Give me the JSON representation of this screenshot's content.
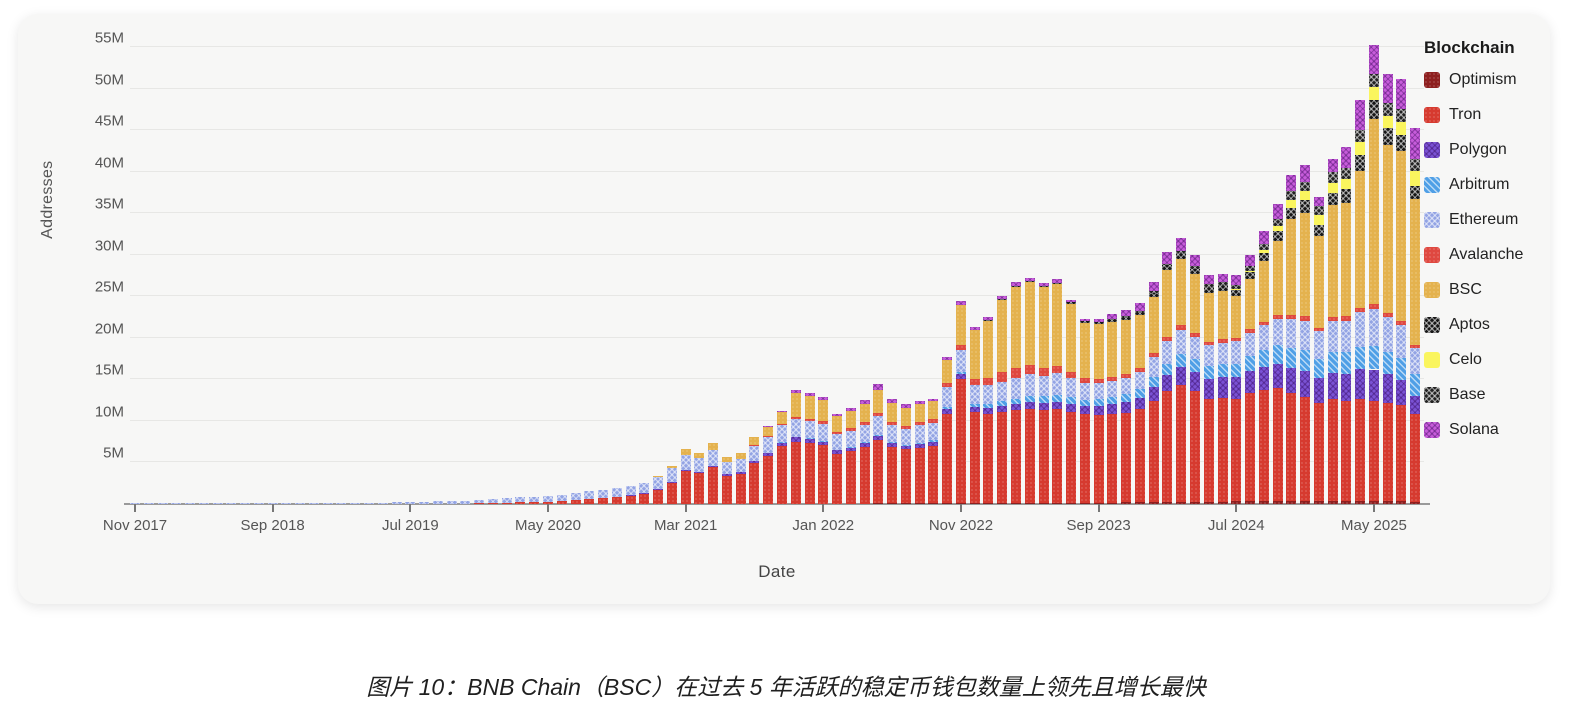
{
  "page": {
    "caption": "图片 10：BNB Chain（BSC）在过去 5 年活跃的稳定币钱包数量上领先且增长最快"
  },
  "chart_data": {
    "type": "bar",
    "stacked": true,
    "xlabel": "Date",
    "ylabel": "Addresses",
    "y_unit": "M",
    "ylim": [
      0,
      56
    ],
    "grid": true,
    "legend_position": "right",
    "legend_title": "Blockchain",
    "y_tick_labels": [
      "5M",
      "10M",
      "15M",
      "20M",
      "25M",
      "30M",
      "35M",
      "40M",
      "45M",
      "50M",
      "55M"
    ],
    "x_start_month": "Nov 2017",
    "x_end_month": "Aug 2025",
    "x_frequency": "monthly",
    "x_tick_every": 10,
    "x_tick_labels": [
      "Nov 2017",
      "Sep 2018",
      "Jul 2019",
      "May 2020",
      "Mar 2021",
      "Jan 2022",
      "Nov 2022",
      "Sep 2023",
      "Jul 2024",
      "May 2025"
    ],
    "series": [
      {
        "name": "Optimism",
        "color": "#8e1f1f",
        "pattern": "dots",
        "values": [
          0,
          0,
          0,
          0,
          0,
          0,
          0,
          0,
          0,
          0,
          0,
          0,
          0,
          0,
          0,
          0,
          0,
          0,
          0,
          0,
          0,
          0,
          0,
          0,
          0,
          0,
          0,
          0,
          0,
          0,
          0,
          0,
          0,
          0,
          0,
          0,
          0,
          0,
          0,
          0,
          0,
          0,
          0,
          0,
          0,
          0,
          0,
          0,
          0,
          0,
          0.05,
          0.05,
          0.06,
          0.06,
          0.08,
          0.08,
          0.08,
          0.09,
          0.1,
          0.1,
          0.1,
          0.1,
          0.1,
          0.1,
          0.1,
          0.1,
          0.12,
          0.12,
          0.12,
          0.12,
          0.15,
          0.15,
          0.2,
          0.2,
          0.25,
          0.3,
          0.3,
          0.3,
          0.3,
          0.3,
          0.35,
          0.35,
          0.35,
          0.4,
          0.4,
          0.4,
          0.4,
          0.4,
          0.4,
          0.4,
          0.4,
          0.4,
          0.35,
          0.3
        ]
      },
      {
        "name": "Tron",
        "color": "#d63a2f",
        "pattern": "dots",
        "values": [
          0,
          0,
          0,
          0,
          0,
          0,
          0,
          0,
          0,
          0,
          0,
          0,
          0,
          0,
          0,
          0,
          0,
          0,
          0,
          0,
          0,
          0.02,
          0.03,
          0.04,
          0.05,
          0.08,
          0.1,
          0.15,
          0.2,
          0.25,
          0.3,
          0.4,
          0.48,
          0.58,
          0.7,
          0.85,
          1.0,
          1.25,
          1.7,
          2.5,
          4.0,
          3.7,
          4.4,
          3.4,
          3.6,
          4.9,
          5.8,
          7.0,
          7.5,
          7.3,
          7.0,
          6.0,
          6.3,
          6.8,
          7.6,
          6.8,
          6.5,
          6.7,
          6.9,
          10.8,
          15.0,
          11.0,
          10.8,
          11.0,
          11.2,
          11.4,
          11.2,
          11.3,
          11.0,
          10.7,
          10.6,
          10.7,
          10.8,
          11.2,
          12.2,
          13.3,
          14.0,
          13.3,
          12.4,
          12.5,
          12.3,
          13.0,
          13.4,
          13.6,
          13.0,
          12.5,
          11.8,
          12.2,
          12.0,
          12.2,
          12.0,
          11.8,
          11.6,
          10.5
        ]
      },
      {
        "name": "Polygon",
        "color": "#7a52d4",
        "pattern": "cross-dark",
        "values": [
          0,
          0,
          0,
          0,
          0,
          0,
          0,
          0,
          0,
          0,
          0,
          0,
          0,
          0,
          0,
          0,
          0,
          0,
          0,
          0,
          0,
          0,
          0,
          0,
          0,
          0,
          0,
          0,
          0,
          0,
          0,
          0,
          0.02,
          0.03,
          0.04,
          0.05,
          0.06,
          0.08,
          0.1,
          0.12,
          0.15,
          0.18,
          0.22,
          0.2,
          0.22,
          0.28,
          0.32,
          0.4,
          0.55,
          0.5,
          0.45,
          0.4,
          0.42,
          0.45,
          0.5,
          0.45,
          0.42,
          0.45,
          0.48,
          0.52,
          0.55,
          0.6,
          0.65,
          0.7,
          0.75,
          0.8,
          0.85,
          0.9,
          0.95,
          1.0,
          1.1,
          1.2,
          1.3,
          1.4,
          1.6,
          1.9,
          2.2,
          2.3,
          2.4,
          2.5,
          2.6,
          2.7,
          2.8,
          2.9,
          3.0,
          3.1,
          3.0,
          3.2,
          3.3,
          3.6,
          3.8,
          3.4,
          3.0,
          2.2
        ]
      },
      {
        "name": "Arbitrum",
        "color": "#4f9fe6",
        "pattern": "diag",
        "values": [
          0,
          0,
          0,
          0,
          0,
          0,
          0,
          0,
          0,
          0,
          0,
          0,
          0,
          0,
          0,
          0,
          0,
          0,
          0,
          0,
          0,
          0,
          0,
          0,
          0,
          0,
          0,
          0,
          0,
          0,
          0,
          0,
          0,
          0,
          0,
          0,
          0,
          0,
          0,
          0,
          0,
          0,
          0,
          0,
          0.02,
          0.03,
          0.05,
          0.06,
          0.08,
          0.1,
          0.1,
          0.1,
          0.12,
          0.14,
          0.16,
          0.15,
          0.14,
          0.16,
          0.18,
          0.25,
          0.3,
          0.35,
          0.45,
          0.55,
          0.65,
          0.75,
          0.8,
          0.85,
          0.8,
          0.75,
          0.78,
          0.82,
          0.9,
          1.0,
          1.2,
          1.4,
          1.6,
          1.55,
          1.5,
          1.55,
          1.65,
          1.75,
          1.95,
          2.2,
          2.4,
          2.5,
          2.3,
          2.5,
          2.6,
          2.7,
          2.8,
          2.7,
          2.6,
          2.6
        ]
      },
      {
        "name": "Ethereum",
        "color": "#93a4e4",
        "pattern": "cross-white",
        "values": [
          0.02,
          0.02,
          0.03,
          0.03,
          0.04,
          0.04,
          0.05,
          0.05,
          0.06,
          0.06,
          0.07,
          0.08,
          0.09,
          0.1,
          0.11,
          0.12,
          0.14,
          0.16,
          0.18,
          0.2,
          0.25,
          0.28,
          0.3,
          0.33,
          0.36,
          0.45,
          0.5,
          0.55,
          0.6,
          0.6,
          0.62,
          0.72,
          0.85,
          0.95,
          1.0,
          1.05,
          1.1,
          1.25,
          1.5,
          1.7,
          1.8,
          1.7,
          1.85,
          1.5,
          1.55,
          1.8,
          1.9,
          2.0,
          2.1,
          2.05,
          2.0,
          1.85,
          1.95,
          2.05,
          2.2,
          2.0,
          1.9,
          2.1,
          2.1,
          2.4,
          2.6,
          2.3,
          2.3,
          2.4,
          2.5,
          2.6,
          2.5,
          2.55,
          2.3,
          2.0,
          1.9,
          1.95,
          2.0,
          2.1,
          2.4,
          2.7,
          2.9,
          2.7,
          2.5,
          2.55,
          2.7,
          2.8,
          3.0,
          3.2,
          3.5,
          3.6,
          3.3,
          3.7,
          3.8,
          4.2,
          4.5,
          4.2,
          4.0,
          3.2
        ]
      },
      {
        "name": "Avalanche",
        "color": "#df4840",
        "pattern": "dots",
        "values": [
          0,
          0,
          0,
          0,
          0,
          0,
          0,
          0,
          0,
          0,
          0,
          0,
          0,
          0,
          0,
          0,
          0,
          0,
          0,
          0,
          0,
          0,
          0,
          0,
          0,
          0,
          0,
          0,
          0,
          0,
          0,
          0,
          0,
          0,
          0,
          0,
          0,
          0,
          0,
          0,
          0,
          0,
          0,
          0,
          0.03,
          0.06,
          0.1,
          0.15,
          0.25,
          0.3,
          0.35,
          0.3,
          0.32,
          0.36,
          0.45,
          0.4,
          0.35,
          0.4,
          0.42,
          0.55,
          0.6,
          0.65,
          0.9,
          1.1,
          1.2,
          1.1,
          0.95,
          0.85,
          0.7,
          0.55,
          0.5,
          0.48,
          0.45,
          0.45,
          0.5,
          0.55,
          0.6,
          0.5,
          0.45,
          0.42,
          0.4,
          0.42,
          0.45,
          0.48,
          0.5,
          0.5,
          0.45,
          0.5,
          0.5,
          0.55,
          0.6,
          0.55,
          0.5,
          0.4
        ]
      },
      {
        "name": "BSC",
        "color": "#e4b24e",
        "pattern": "dots",
        "values": [
          0,
          0,
          0,
          0,
          0,
          0,
          0,
          0,
          0,
          0,
          0,
          0,
          0,
          0,
          0,
          0,
          0,
          0,
          0,
          0,
          0,
          0,
          0,
          0,
          0,
          0,
          0,
          0,
          0,
          0,
          0,
          0,
          0,
          0,
          0,
          0,
          0,
          0,
          0.05,
          0.2,
          0.7,
          0.6,
          0.85,
          0.6,
          0.7,
          0.95,
          1.1,
          1.45,
          2.85,
          2.7,
          2.55,
          1.85,
          2.0,
          2.2,
          2.8,
          2.3,
          2.2,
          2.2,
          2.2,
          2.7,
          4.8,
          5.9,
          6.9,
          8.7,
          9.7,
          10.0,
          9.7,
          9.9,
          8.2,
          6.7,
          6.6,
          6.6,
          6.5,
          6.4,
          6.8,
          8.0,
          7.9,
          7.0,
          5.9,
          5.8,
          5.0,
          6.1,
          7.3,
          8.9,
          11.5,
          12.5,
          11.0,
          13.5,
          13.7,
          16.5,
          22.3,
          20.2,
          20.5,
          17.5
        ]
      },
      {
        "name": "Aptos",
        "color": "#171717",
        "pattern": "cross-white",
        "values": [
          0,
          0,
          0,
          0,
          0,
          0,
          0,
          0,
          0,
          0,
          0,
          0,
          0,
          0,
          0,
          0,
          0,
          0,
          0,
          0,
          0,
          0,
          0,
          0,
          0,
          0,
          0,
          0,
          0,
          0,
          0,
          0,
          0,
          0,
          0,
          0,
          0,
          0,
          0,
          0,
          0,
          0,
          0,
          0,
          0,
          0,
          0,
          0,
          0,
          0,
          0,
          0,
          0,
          0,
          0,
          0,
          0,
          0,
          0,
          0,
          0,
          0,
          0.1,
          0.12,
          0.15,
          0.15,
          0.15,
          0.18,
          0.2,
          0.22,
          0.25,
          0.3,
          0.35,
          0.4,
          0.5,
          0.6,
          0.7,
          0.7,
          0.65,
          0.7,
          0.8,
          0.85,
          1.0,
          1.2,
          1.4,
          1.5,
          1.4,
          1.5,
          1.6,
          1.9,
          2.2,
          2.0,
          1.9,
          1.6
        ]
      },
      {
        "name": "Celo",
        "color": "#faf55e",
        "pattern": "solid",
        "values": [
          0,
          0,
          0,
          0,
          0,
          0,
          0,
          0,
          0,
          0,
          0,
          0,
          0,
          0,
          0,
          0,
          0,
          0,
          0,
          0,
          0,
          0,
          0,
          0,
          0,
          0,
          0,
          0,
          0,
          0,
          0,
          0,
          0,
          0,
          0,
          0,
          0,
          0,
          0,
          0,
          0,
          0,
          0,
          0,
          0,
          0,
          0,
          0,
          0,
          0,
          0,
          0,
          0,
          0,
          0,
          0,
          0,
          0,
          0,
          0,
          0,
          0,
          0,
          0,
          0,
          0,
          0,
          0,
          0,
          0,
          0,
          0,
          0,
          0,
          0,
          0,
          0,
          0,
          0,
          0,
          0.1,
          0.15,
          0.3,
          0.6,
          0.9,
          1.1,
          1.1,
          1.2,
          1.3,
          1.5,
          1.6,
          1.5,
          1.6,
          1.8
        ]
      },
      {
        "name": "Base",
        "color": "#222222",
        "pattern": "cross-white",
        "values": [
          0,
          0,
          0,
          0,
          0,
          0,
          0,
          0,
          0,
          0,
          0,
          0,
          0,
          0,
          0,
          0,
          0,
          0,
          0,
          0,
          0,
          0,
          0,
          0,
          0,
          0,
          0,
          0,
          0,
          0,
          0,
          0,
          0,
          0,
          0,
          0,
          0,
          0,
          0,
          0,
          0,
          0,
          0,
          0,
          0,
          0,
          0,
          0,
          0,
          0,
          0,
          0,
          0,
          0,
          0,
          0,
          0,
          0,
          0,
          0,
          0,
          0,
          0,
          0,
          0,
          0,
          0,
          0,
          0,
          0,
          0.05,
          0.08,
          0.1,
          0.12,
          0.15,
          0.2,
          0.25,
          0.3,
          0.35,
          0.4,
          0.5,
          0.6,
          0.75,
          0.9,
          1.05,
          1.1,
          1.2,
          1.3,
          1.3,
          1.5,
          1.6,
          1.5,
          1.5,
          1.4
        ]
      },
      {
        "name": "Solana",
        "color": "#c75cda",
        "pattern": "cross-dark",
        "values": [
          0,
          0,
          0,
          0,
          0,
          0,
          0,
          0,
          0,
          0,
          0,
          0,
          0,
          0,
          0,
          0,
          0,
          0,
          0,
          0,
          0,
          0,
          0,
          0,
          0,
          0,
          0,
          0,
          0,
          0,
          0,
          0,
          0,
          0,
          0,
          0,
          0,
          0,
          0,
          0,
          0,
          0,
          0,
          0,
          0,
          0,
          0.05,
          0.15,
          0.35,
          0.4,
          0.4,
          0.3,
          0.35,
          0.45,
          0.7,
          0.5,
          0.4,
          0.35,
          0.3,
          0.4,
          0.5,
          0.4,
          0.35,
          0.4,
          0.45,
          0.3,
          0.35,
          0.4,
          0.35,
          0.3,
          0.35,
          0.6,
          0.8,
          0.9,
          1.1,
          1.4,
          1.6,
          1.3,
          1.1,
          1.0,
          1.2,
          1.3,
          1.6,
          1.8,
          2.0,
          2.0,
          1.0,
          1.5,
          2.5,
          3.55,
          3.5,
          3.5,
          3.6,
          3.8
        ]
      }
    ]
  }
}
